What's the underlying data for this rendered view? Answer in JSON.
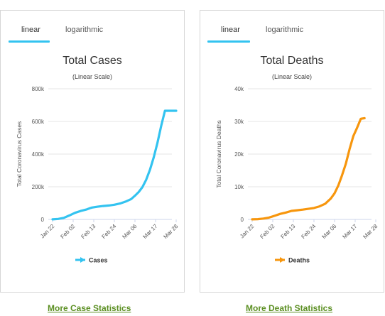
{
  "tabs": {
    "linear": "linear",
    "logarithmic": "logarithmic"
  },
  "links": {
    "cases": "More Case Statistics",
    "deaths": "More Death Statistics"
  },
  "colors": {
    "accent_tab": "#33c3f0",
    "link": "#5b8f22"
  },
  "chart_data": [
    {
      "type": "line",
      "title": "Total Cases",
      "subtitle": "(Linear Scale)",
      "ylabel": "Total Coronavirus Cases",
      "xlabel": "",
      "ylim": [
        0,
        800000
      ],
      "yticks": [
        0,
        200000,
        400000,
        600000,
        800000
      ],
      "ytick_labels": [
        "0",
        "200k",
        "400k",
        "600k",
        "800k"
      ],
      "categories": [
        "Jan 22",
        "Feb 02",
        "Feb 13",
        "Feb 24",
        "Mar 06",
        "Mar 17",
        "Mar 28"
      ],
      "grid": true,
      "legend": "bottom",
      "color": "#33c3f0",
      "series": [
        {
          "name": "Cases",
          "x": [
            0,
            3,
            6,
            9,
            12,
            15,
            18,
            20,
            21,
            24,
            27,
            30,
            33,
            36,
            39,
            42,
            44,
            46,
            48,
            50,
            52,
            54,
            56,
            58,
            60,
            62,
            64,
            66
          ],
          "values": [
            555,
            2900,
            9700,
            24500,
            40500,
            51800,
            60300,
            69000,
            72500,
            78000,
            82000,
            85000,
            90000,
            97500,
            109000,
            125000,
            145000,
            168000,
            198000,
            243000,
            304000,
            380000,
            468000,
            572000,
            665000,
            665000,
            665000,
            665000
          ]
        }
      ]
    },
    {
      "type": "line",
      "title": "Total Deaths",
      "subtitle": "(Linear Scale)",
      "ylabel": "Total Coronavirus Deaths",
      "xlabel": "",
      "ylim": [
        0,
        40000
      ],
      "yticks": [
        0,
        10000,
        20000,
        30000,
        40000
      ],
      "ytick_labels": [
        "0",
        "10k",
        "20k",
        "30k",
        "40k"
      ],
      "categories": [
        "Jan 22",
        "Feb 02",
        "Feb 13",
        "Feb 24",
        "Mar 06",
        "Mar 17",
        "Mar 28"
      ],
      "grid": true,
      "legend": "bottom",
      "color": "#f7960d",
      "series": [
        {
          "name": "Deaths",
          "x": [
            0,
            3,
            6,
            9,
            12,
            15,
            18,
            21,
            24,
            27,
            30,
            33,
            36,
            39,
            42,
            44,
            46,
            48,
            50,
            52,
            54,
            56,
            58,
            60
          ],
          "values": [
            17,
            80,
            260,
            560,
            1100,
            1700,
            2100,
            2600,
            2800,
            3000,
            3250,
            3500,
            4000,
            4800,
            6400,
            8000,
            10400,
            13500,
            17000,
            21500,
            25500,
            28000,
            30800,
            31000
          ]
        }
      ]
    }
  ]
}
